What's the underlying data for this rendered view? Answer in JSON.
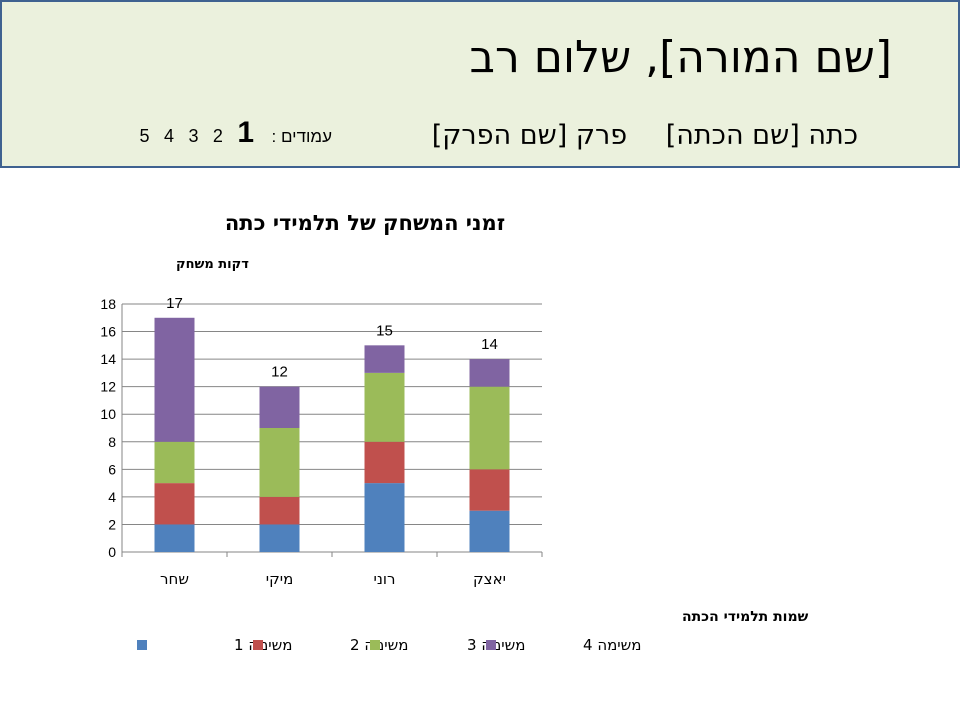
{
  "header": {
    "title": "[שם המורה], שלום רב",
    "class_label": "כתה [שם הכתה]",
    "chapter_label": "פרק [שם הפרק]",
    "pages_label": "עמודים :",
    "pages": [
      "1",
      "2",
      "3",
      "4",
      "5"
    ],
    "current_page": "1"
  },
  "colors": {
    "header_bg": "#ebf1dd",
    "header_border": "#3f6290",
    "series": [
      "#4f81bd",
      "#c0504d",
      "#9bbb59",
      "#8064a2"
    ]
  },
  "chart_data": {
    "type": "bar",
    "stacked": true,
    "title": "זמני המשחק של תלמידי כתה",
    "ylabel": "דקות משחק",
    "xlabel": "שמות תלמידי הכתה",
    "categories": [
      "שחר",
      "מיקי",
      "רוני",
      "יאצק"
    ],
    "series": [
      {
        "name": "משימה 1",
        "values": [
          2,
          2,
          5,
          3
        ]
      },
      {
        "name": "משימה 2",
        "values": [
          3,
          2,
          3,
          3
        ]
      },
      {
        "name": "משימה 3",
        "values": [
          3,
          5,
          5,
          6
        ]
      },
      {
        "name": "משימה 4",
        "values": [
          9,
          3,
          2,
          2
        ]
      }
    ],
    "totals": [
      "17",
      "12",
      "15",
      "14"
    ],
    "ylim": [
      0,
      18
    ],
    "yticks": [
      "0",
      "2",
      "4",
      "6",
      "8",
      "10",
      "12",
      "14",
      "16",
      "18"
    ],
    "grid": true,
    "legend_position": "bottom"
  }
}
